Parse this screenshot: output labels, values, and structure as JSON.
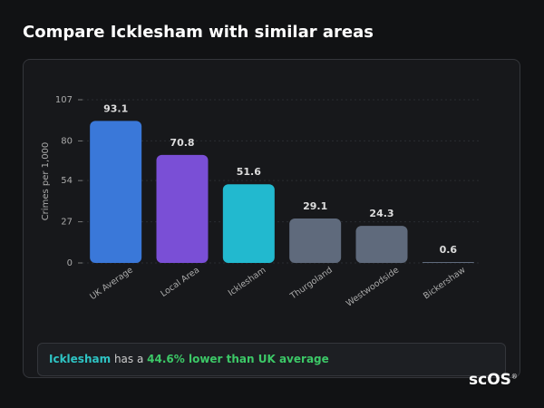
{
  "chart_data": {
    "type": "bar",
    "title": "Compare Icklesham with similar areas",
    "y_label": "Crimes per 1,000",
    "categories": [
      "UK Average",
      "Local Area",
      "Icklesham",
      "Thurgoland",
      "Westwoodside",
      "Bickershaw"
    ],
    "values": [
      93.1,
      70.8,
      51.6,
      29.1,
      24.3,
      0.6
    ],
    "colors": [
      "#3a78d9",
      "#7a4fd6",
      "#22b9cf",
      "#5f6a7c",
      "#5f6a7c",
      "#5f6a7c"
    ],
    "ylim": [
      0,
      107
    ],
    "yticks": [
      0,
      27,
      54,
      80,
      107
    ],
    "grid": true
  },
  "insight": {
    "area": "Icklesham",
    "connector": "has a",
    "highlight": "44.6% lower than UK average"
  },
  "logo": {
    "text": "scOS",
    "mark": "®"
  }
}
